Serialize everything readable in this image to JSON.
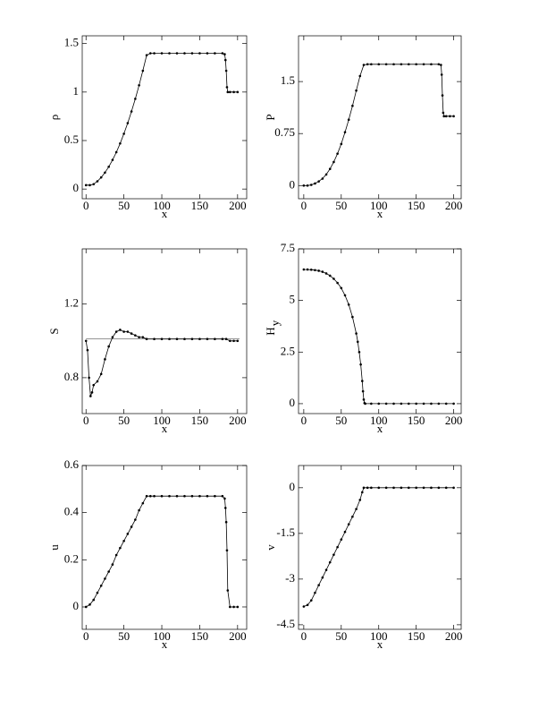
{
  "chart_data": [
    {
      "type": "scatter",
      "ylabel": "ρ",
      "xlabel": "x",
      "x": [
        0,
        5,
        10,
        15,
        20,
        25,
        30,
        35,
        40,
        45,
        50,
        55,
        60,
        65,
        70,
        75,
        80,
        85,
        90,
        100,
        110,
        120,
        130,
        140,
        150,
        160,
        170,
        180,
        183,
        184,
        185,
        186,
        187,
        190,
        195,
        200
      ],
      "values": [
        0.04,
        0.04,
        0.05,
        0.08,
        0.12,
        0.17,
        0.23,
        0.3,
        0.38,
        0.47,
        0.57,
        0.68,
        0.8,
        0.93,
        1.07,
        1.22,
        1.38,
        1.4,
        1.4,
        1.4,
        1.4,
        1.4,
        1.4,
        1.4,
        1.4,
        1.4,
        1.4,
        1.4,
        1.39,
        1.33,
        1.22,
        1.05,
        1.0,
        1.0,
        1.0,
        1.0
      ],
      "color": "#000000",
      "xlim": [
        -5,
        212
      ],
      "xticks": [
        0,
        50,
        100,
        150,
        200
      ],
      "ylim": [
        -0.1,
        1.58
      ],
      "yticks": [
        0,
        0.5,
        1,
        1.5
      ]
    },
    {
      "type": "scatter",
      "ylabel": "P",
      "xlabel": "x",
      "x": [
        0,
        5,
        10,
        15,
        20,
        25,
        30,
        35,
        40,
        45,
        50,
        55,
        60,
        65,
        70,
        75,
        80,
        85,
        90,
        100,
        110,
        120,
        130,
        140,
        150,
        160,
        170,
        180,
        183,
        184,
        185,
        186,
        187,
        190,
        195,
        200
      ],
      "values": [
        0,
        0,
        0.01,
        0.03,
        0.06,
        0.1,
        0.16,
        0.24,
        0.34,
        0.46,
        0.6,
        0.77,
        0.95,
        1.15,
        1.37,
        1.58,
        1.74,
        1.75,
        1.75,
        1.75,
        1.75,
        1.75,
        1.75,
        1.75,
        1.75,
        1.75,
        1.75,
        1.75,
        1.74,
        1.6,
        1.3,
        1.05,
        1.0,
        1.0,
        1.0,
        1.0
      ],
      "color": "#000000",
      "xlim": [
        -7,
        210
      ],
      "xticks": [
        0,
        50,
        100,
        150,
        200
      ],
      "ylim": [
        -0.19,
        2.16
      ],
      "yticks": [
        0,
        0.75,
        1.5
      ]
    },
    {
      "type": "scatter",
      "ylabel": "S",
      "xlabel": "x",
      "x": [
        0,
        2,
        4,
        6,
        8,
        10,
        15,
        20,
        25,
        30,
        35,
        40,
        45,
        50,
        55,
        60,
        65,
        70,
        75,
        80,
        90,
        100,
        110,
        120,
        130,
        140,
        150,
        160,
        170,
        180,
        185,
        190,
        195,
        200
      ],
      "values": [
        1.0,
        0.95,
        0.8,
        0.7,
        0.72,
        0.76,
        0.78,
        0.82,
        0.9,
        0.97,
        1.02,
        1.05,
        1.06,
        1.05,
        1.05,
        1.04,
        1.03,
        1.02,
        1.02,
        1.01,
        1.01,
        1.01,
        1.01,
        1.01,
        1.01,
        1.01,
        1.01,
        1.01,
        1.01,
        1.01,
        1.01,
        1.0,
        1.0,
        1.0
      ],
      "hline": 1.01,
      "color": "#000000",
      "xlim": [
        -5,
        212
      ],
      "xticks": [
        0,
        50,
        100,
        150,
        200
      ],
      "ylim": [
        0.605,
        1.5
      ],
      "yticks": [
        0.8,
        1.2
      ]
    },
    {
      "type": "scatter",
      "ylabel": "H",
      "ylabel_sub": "y",
      "xlabel": "x",
      "x": [
        0,
        5,
        10,
        15,
        20,
        25,
        30,
        35,
        40,
        45,
        50,
        55,
        60,
        65,
        70,
        72,
        74,
        76,
        78,
        79,
        80,
        81,
        82,
        90,
        100,
        110,
        120,
        130,
        140,
        150,
        160,
        170,
        180,
        190,
        200
      ],
      "values": [
        6.5,
        6.5,
        6.49,
        6.47,
        6.44,
        6.39,
        6.31,
        6.2,
        6.05,
        5.85,
        5.6,
        5.25,
        4.8,
        4.2,
        3.4,
        3.0,
        2.5,
        1.9,
        1.1,
        0.6,
        0.2,
        0.03,
        0,
        0,
        0,
        0,
        0,
        0,
        0,
        0,
        0,
        0,
        0,
        0,
        0
      ],
      "color": "#000000",
      "xlim": [
        -7,
        210
      ],
      "xticks": [
        0,
        50,
        100,
        150,
        200
      ],
      "ylim": [
        -0.48,
        7.5
      ],
      "yticks": [
        0,
        2.5,
        5,
        7.5
      ]
    },
    {
      "type": "scatter",
      "ylabel": "u",
      "xlabel": "x",
      "x": [
        0,
        5,
        10,
        15,
        20,
        25,
        30,
        35,
        40,
        45,
        50,
        55,
        60,
        65,
        70,
        75,
        80,
        85,
        90,
        100,
        110,
        120,
        130,
        140,
        150,
        160,
        170,
        180,
        183,
        184,
        185,
        186,
        187,
        190,
        195,
        200
      ],
      "values": [
        0,
        0.01,
        0.03,
        0.06,
        0.09,
        0.12,
        0.15,
        0.18,
        0.22,
        0.25,
        0.28,
        0.31,
        0.34,
        0.37,
        0.41,
        0.44,
        0.47,
        0.47,
        0.47,
        0.47,
        0.47,
        0.47,
        0.47,
        0.47,
        0.47,
        0.47,
        0.47,
        0.47,
        0.46,
        0.42,
        0.36,
        0.24,
        0.07,
        0,
        0,
        0
      ],
      "color": "#000000",
      "xlim": [
        -5,
        212
      ],
      "xticks": [
        0,
        50,
        100,
        150,
        200
      ],
      "ylim": [
        -0.095,
        0.6
      ],
      "yticks": [
        0,
        0.2,
        0.4,
        0.6
      ]
    },
    {
      "type": "scatter",
      "ylabel": "v",
      "xlabel": "x",
      "x": [
        0,
        5,
        10,
        15,
        20,
        25,
        30,
        35,
        40,
        45,
        50,
        55,
        60,
        65,
        70,
        75,
        78,
        80,
        85,
        90,
        100,
        110,
        120,
        130,
        140,
        150,
        160,
        170,
        180,
        190,
        200
      ],
      "values": [
        -3.9,
        -3.85,
        -3.7,
        -3.45,
        -3.2,
        -2.95,
        -2.7,
        -2.45,
        -2.2,
        -1.95,
        -1.7,
        -1.45,
        -1.2,
        -0.95,
        -0.7,
        -0.4,
        -0.15,
        0,
        0,
        0,
        0,
        0,
        0,
        0,
        0,
        0,
        0,
        0,
        0,
        0,
        0
      ],
      "color": "#000000",
      "xlim": [
        -7,
        210
      ],
      "xticks": [
        0,
        50,
        100,
        150,
        200
      ],
      "ylim": [
        -4.65,
        0.73
      ],
      "yticks": [
        0,
        -1.5,
        -3,
        -4.5
      ]
    }
  ]
}
